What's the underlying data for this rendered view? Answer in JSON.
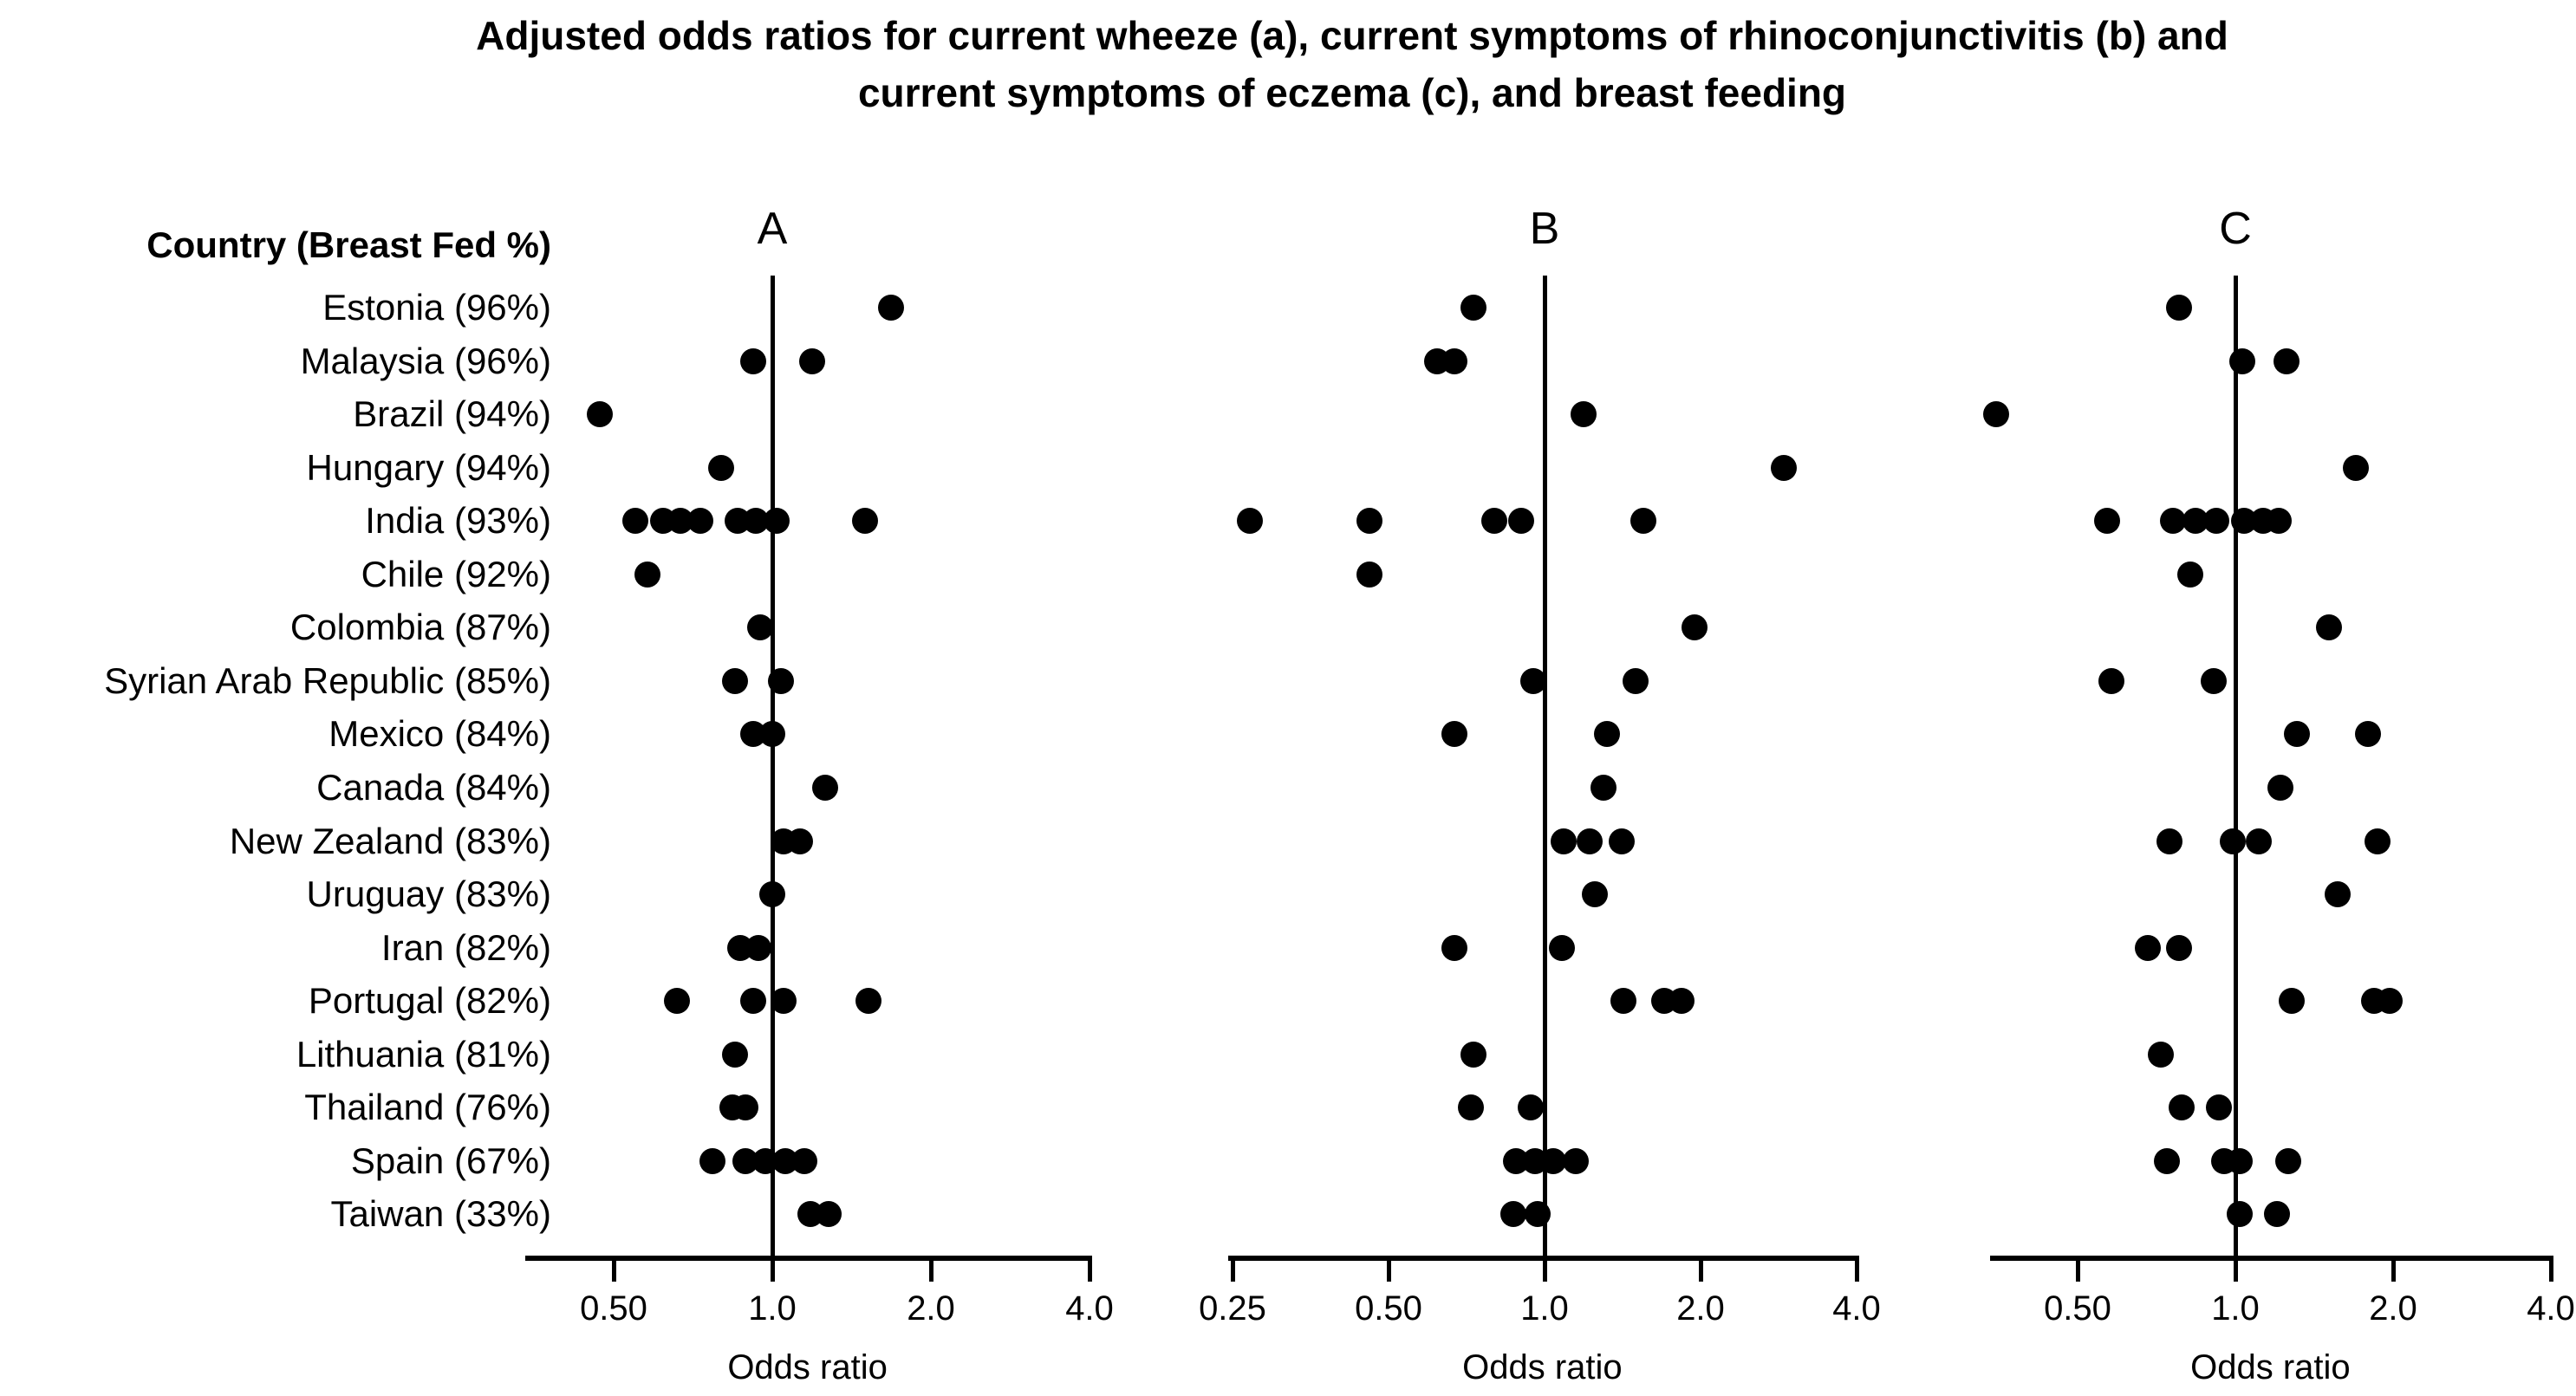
{
  "title": {
    "line1": "Adjusted odds ratios for current wheeze (a), current symptoms of rhinoconjunctivitis (b) and",
    "line2": "current symptoms of eczema (c), and breast feeding"
  },
  "colors": {
    "foreground": "#000000",
    "background": "#ffffff"
  },
  "chart_data": {
    "type": "scatter",
    "title": "Adjusted odds ratios for current wheeze (a), current symptoms of rhinoconjunctivitis (b) and current symptoms of eczema (c), and breast feeding",
    "layout_hint": "Three horizontal dot-plot (forest-style) panels sharing one list of country rows; x axes are log2-scaled odds ratios; each panel has a vertical reference line at OR = 1.0; grid off; no legend; black dots on white.",
    "row_header": "Country (Breast Fed %)",
    "categories": [
      "Estonia (96%)",
      "Malaysia (96%)",
      "Brazil (94%)",
      "Hungary (94%)",
      "India (93%)",
      "Chile (92%)",
      "Colombia (87%)",
      "Syrian Arab Republic (85%)",
      "Mexico (84%)",
      "Canada (84%)",
      "New Zealand (83%)",
      "Uruguay (83%)",
      "Iran (82%)",
      "Portugal (82%)",
      "Lithuania (81%)",
      "Thailand (76%)",
      "Spain (67%)",
      "Taiwan (33%)"
    ],
    "panels": [
      {
        "letter": "A",
        "outcome": "current wheeze",
        "xlabel": "Odds ratio",
        "xlim": [
          0.34,
          4.0
        ],
        "ticks": [
          0.5,
          1.0,
          2.0,
          4.0
        ],
        "tick_labels": [
          "0.50",
          "1.0",
          "2.0",
          "4.0"
        ],
        "reference_line": 1.0
      },
      {
        "letter": "B",
        "outcome": "current symptoms of rhinoconjunctivitis",
        "xlabel": "Odds ratio",
        "xlim": [
          0.245,
          4.0
        ],
        "ticks": [
          0.25,
          0.5,
          1.0,
          2.0,
          4.0
        ],
        "tick_labels": [
          "0.25",
          "0.50",
          "1.0",
          "2.0",
          "4.0"
        ],
        "reference_line": 1.0
      },
      {
        "letter": "C",
        "outcome": "current symptoms of eczema",
        "xlabel": "Odds ratio",
        "xlim": [
          0.34,
          4.0
        ],
        "ticks": [
          0.5,
          1.0,
          2.0,
          4.0
        ],
        "tick_labels": [
          "0.50",
          "1.0",
          "2.0",
          "4.0"
        ],
        "reference_line": 1.0
      }
    ],
    "countries": [
      {
        "label": "Estonia (96%)",
        "A": [
          1.68
        ],
        "B": [
          0.73
        ],
        "C": [
          0.78
        ]
      },
      {
        "label": "Malaysia (96%)",
        "A": [
          0.92,
          1.19
        ],
        "B": [
          0.62,
          0.67
        ],
        "C": [
          1.03,
          1.25
        ]
      },
      {
        "label": "Brazil (94%)",
        "A": [
          0.47
        ],
        "B": [
          1.19
        ],
        "C": [
          0.35
        ]
      },
      {
        "label": "Hungary (94%)",
        "A": [
          0.8
        ],
        "B": [
          2.9
        ],
        "C": [
          1.7
        ]
      },
      {
        "label": "India (93%)",
        "A": [
          0.55,
          0.62,
          0.67,
          0.73,
          0.86,
          0.93,
          1.02,
          1.5
        ],
        "B": [
          0.27,
          0.46,
          0.8,
          0.9,
          1.55
        ],
        "C": [
          0.57,
          0.76,
          0.84,
          0.92,
          1.04,
          1.13,
          1.21
        ]
      },
      {
        "label": "Chile (92%)",
        "A": [
          0.58
        ],
        "B": [
          0.46
        ],
        "C": [
          0.82
        ]
      },
      {
        "label": "Colombia (87%)",
        "A": [
          0.95
        ],
        "B": [
          1.95
        ],
        "C": [
          1.51
        ]
      },
      {
        "label": "Syrian Arab Republic (85%)",
        "A": [
          0.85,
          1.04
        ],
        "B": [
          0.95,
          1.5
        ],
        "C": [
          0.58,
          0.91
        ]
      },
      {
        "label": "Mexico (84%)",
        "A": [
          0.92,
          1.0
        ],
        "B": [
          0.67,
          1.32
        ],
        "C": [
          1.31,
          1.79
        ]
      },
      {
        "label": "Canada (84%)",
        "A": [
          1.26
        ],
        "B": [
          1.3
        ],
        "C": [
          1.22
        ]
      },
      {
        "label": "New Zealand (83%)",
        "A": [
          1.05,
          1.13
        ],
        "B": [
          1.09,
          1.22,
          1.41
        ],
        "C": [
          0.75,
          0.99,
          1.11,
          1.87
        ]
      },
      {
        "label": "Uruguay (83%)",
        "A": [
          1.0
        ],
        "B": [
          1.25
        ],
        "C": [
          1.57
        ]
      },
      {
        "label": "Iran (82%)",
        "A": [
          0.87,
          0.94
        ],
        "B": [
          0.67,
          1.08
        ],
        "C": [
          0.68,
          0.78
        ]
      },
      {
        "label": "Portugal (82%)",
        "A": [
          0.66,
          0.92,
          1.05,
          1.52
        ],
        "B": [
          1.42,
          1.7,
          1.84
        ],
        "C": [
          1.28,
          1.84,
          1.97
        ]
      },
      {
        "label": "Lithuania (81%)",
        "A": [
          0.85
        ],
        "B": [
          0.73
        ],
        "C": [
          0.72
        ]
      },
      {
        "label": "Thailand (76%)",
        "A": [
          0.84,
          0.89
        ],
        "B": [
          0.72,
          0.94
        ],
        "C": [
          0.79,
          0.93
        ]
      },
      {
        "label": "Spain (67%)",
        "A": [
          0.77,
          0.89,
          0.97,
          1.06,
          1.15
        ],
        "B": [
          0.88,
          0.96,
          1.04,
          1.15
        ],
        "C": [
          0.74,
          0.95,
          1.02,
          1.26
        ]
      },
      {
        "label": "Taiwan (33%)",
        "A": [
          1.18,
          1.28
        ],
        "B": [
          0.87,
          0.97
        ],
        "C": [
          1.02,
          1.2
        ]
      }
    ]
  }
}
